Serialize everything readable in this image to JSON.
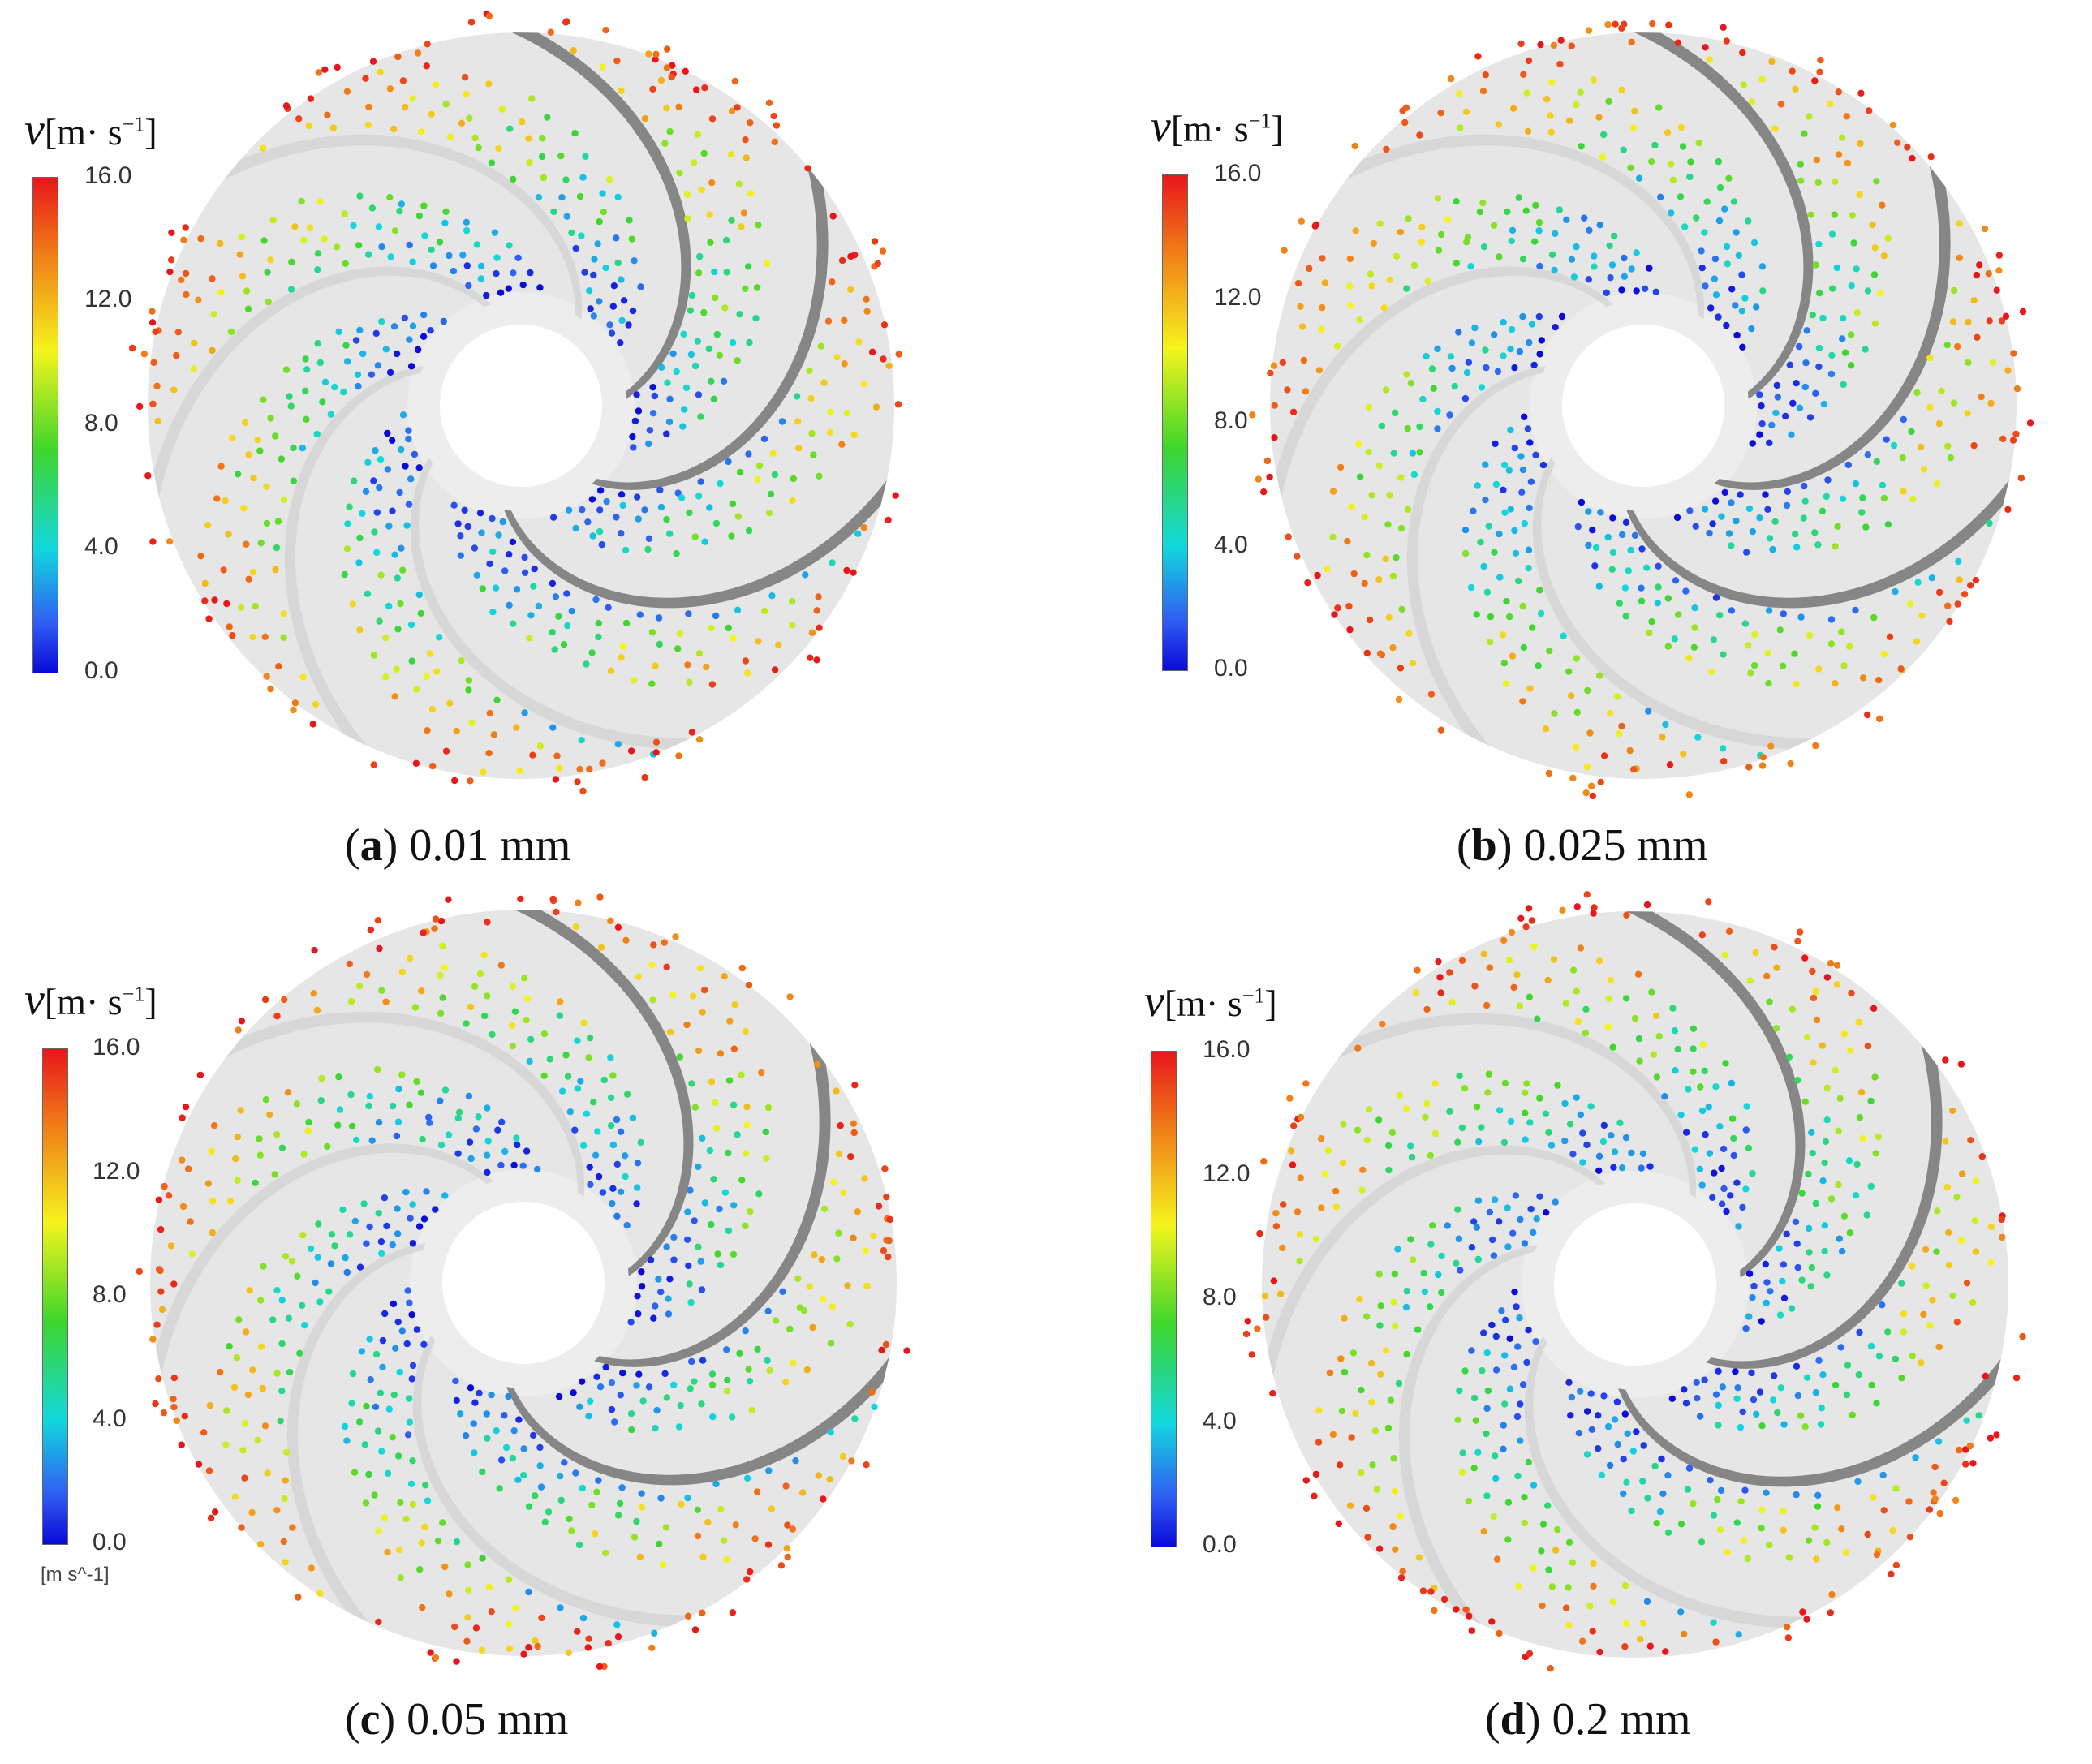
{
  "colorbar": {
    "symbol": "v",
    "unit_open": "[m",
    "unit_dot": "·",
    "unit_s": " s",
    "unit_exp": "−1",
    "unit_close": "]",
    "ticks": [
      "16.0",
      "12.0",
      "8.0",
      "4.0",
      "0.0"
    ],
    "gradient_colors": [
      "#e8161b",
      "#f07a18",
      "#f5f41d",
      "#3fd62b",
      "#12d8de",
      "#2f5df2",
      "#0a0ad8"
    ],
    "software_unit": "[m s^-1]"
  },
  "panels": [
    {
      "id": "a",
      "letter": "a",
      "value": "0.01 mm"
    },
    {
      "id": "b",
      "letter": "b",
      "value": "0.025 mm"
    },
    {
      "id": "c",
      "letter": "c",
      "value": "0.05 mm"
    },
    {
      "id": "d",
      "letter": "d",
      "value": "0.2 mm"
    }
  ],
  "colors": {
    "disk": "#e6e6e6",
    "blade_dark": "#7b7b7b",
    "blade_light": "#d2d2d2"
  }
}
